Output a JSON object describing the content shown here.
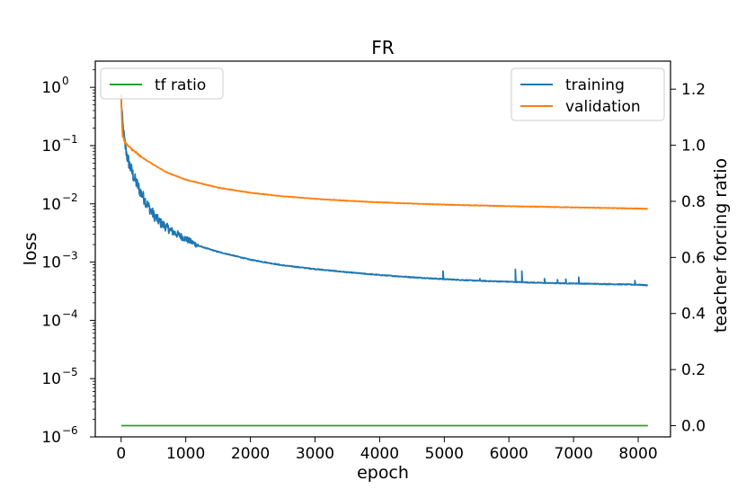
{
  "chart_data": {
    "type": "line",
    "title": "FR",
    "xlabel": "epoch",
    "ylabel": "loss",
    "y2label": "teacher forcing ratio",
    "xlim": [
      -400,
      8500
    ],
    "xticks": [
      0,
      1000,
      2000,
      3000,
      4000,
      5000,
      6000,
      7000,
      8000
    ],
    "ylim_log10": [
      -6,
      0.45
    ],
    "y_scale": "log",
    "yticks": [
      {
        "exp": 0,
        "base": "10",
        "sup": "0"
      },
      {
        "exp": -1,
        "base": "10",
        "sup": "−1"
      },
      {
        "exp": -2,
        "base": "10",
        "sup": "−2"
      },
      {
        "exp": -3,
        "base": "10",
        "sup": "−3"
      },
      {
        "exp": -4,
        "base": "10",
        "sup": "−4"
      },
      {
        "exp": -5,
        "base": "10",
        "sup": "−5"
      },
      {
        "exp": -6,
        "base": "10",
        "sup": "−6"
      }
    ],
    "y2lim": [
      -0.04,
      1.3
    ],
    "y2ticks": [
      "0.0",
      "0.2",
      "0.4",
      "0.6",
      "0.8",
      "1.0",
      "1.2"
    ],
    "series": [
      {
        "name": "training",
        "color": "#1f77b4",
        "axis": "left",
        "x": [
          0,
          20,
          50,
          100,
          150,
          200,
          300,
          400,
          500,
          600,
          800,
          1000,
          1200,
          1500,
          2000,
          2500,
          3000,
          3500,
          4000,
          4500,
          5000,
          5500,
          6000,
          6500,
          7000,
          7500,
          8000,
          8150
        ],
        "y": [
          0.7,
          0.25,
          0.12,
          0.06,
          0.04,
          0.028,
          0.016,
          0.01,
          0.0065,
          0.0048,
          0.0033,
          0.0025,
          0.0019,
          0.0015,
          0.0011,
          0.00088,
          0.00076,
          0.00067,
          0.0006,
          0.00055,
          0.00051,
          0.00048,
          0.00046,
          0.00044,
          0.00043,
          0.00042,
          0.00041,
          0.0004
        ],
        "spikes": [
          [
            4980,
            0.0007
          ],
          [
            5550,
            0.00052
          ],
          [
            6100,
            0.00075
          ],
          [
            6200,
            0.0007
          ],
          [
            6550,
            0.00052
          ],
          [
            6750,
            0.0005
          ],
          [
            6880,
            0.00051
          ],
          [
            7080,
            0.00055
          ],
          [
            7950,
            0.00048
          ]
        ]
      },
      {
        "name": "validation",
        "color": "#ff7f0e",
        "axis": "left",
        "x": [
          0,
          20,
          50,
          100,
          200,
          300,
          500,
          700,
          1000,
          1500,
          2000,
          2500,
          3000,
          3500,
          4000,
          4500,
          5000,
          5500,
          6000,
          6500,
          7000,
          7500,
          8000,
          8150
        ],
        "y": [
          0.7,
          0.15,
          0.12,
          0.1,
          0.08,
          0.065,
          0.047,
          0.035,
          0.026,
          0.019,
          0.0155,
          0.0135,
          0.0122,
          0.0113,
          0.0106,
          0.0101,
          0.0097,
          0.0094,
          0.0091,
          0.0089,
          0.0087,
          0.0085,
          0.0083,
          0.0082
        ]
      },
      {
        "name": "tf ratio",
        "color": "#2ca02c",
        "axis": "right",
        "x": [
          0,
          8150
        ],
        "y": [
          0.0,
          0.0
        ]
      }
    ],
    "legends": [
      {
        "placement": "top-left",
        "entries": [
          "tf ratio"
        ]
      },
      {
        "placement": "top-right",
        "entries": [
          "training",
          "validation"
        ]
      }
    ]
  }
}
